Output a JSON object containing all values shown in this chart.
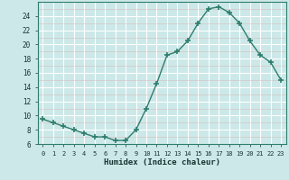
{
  "x": [
    0,
    1,
    2,
    3,
    4,
    5,
    6,
    7,
    8,
    9,
    10,
    11,
    12,
    13,
    14,
    15,
    16,
    17,
    18,
    19,
    20,
    21,
    22,
    23
  ],
  "y": [
    9.5,
    9.0,
    8.5,
    8.0,
    7.5,
    7.0,
    7.0,
    6.5,
    6.5,
    8.0,
    11.0,
    14.5,
    18.5,
    19.0,
    20.5,
    23.0,
    25.0,
    25.3,
    24.5,
    23.0,
    20.5,
    18.5,
    17.5,
    15.0
  ],
  "xlabel": "Humidex (Indice chaleur)",
  "xlim": [
    -0.5,
    23.5
  ],
  "ylim": [
    6,
    26
  ],
  "yticks": [
    6,
    8,
    10,
    12,
    14,
    16,
    18,
    20,
    22,
    24
  ],
  "xticks": [
    0,
    1,
    2,
    3,
    4,
    5,
    6,
    7,
    8,
    9,
    10,
    11,
    12,
    13,
    14,
    15,
    16,
    17,
    18,
    19,
    20,
    21,
    22,
    23
  ],
  "line_color": "#2e7d6e",
  "marker_color": "#2e7d6e",
  "bg_color": "#cce8e8",
  "grid_color": "#d9eeee",
  "grid_major_color": "#ffffff",
  "tick_color": "#1a3333",
  "label_color": "#1a3333"
}
